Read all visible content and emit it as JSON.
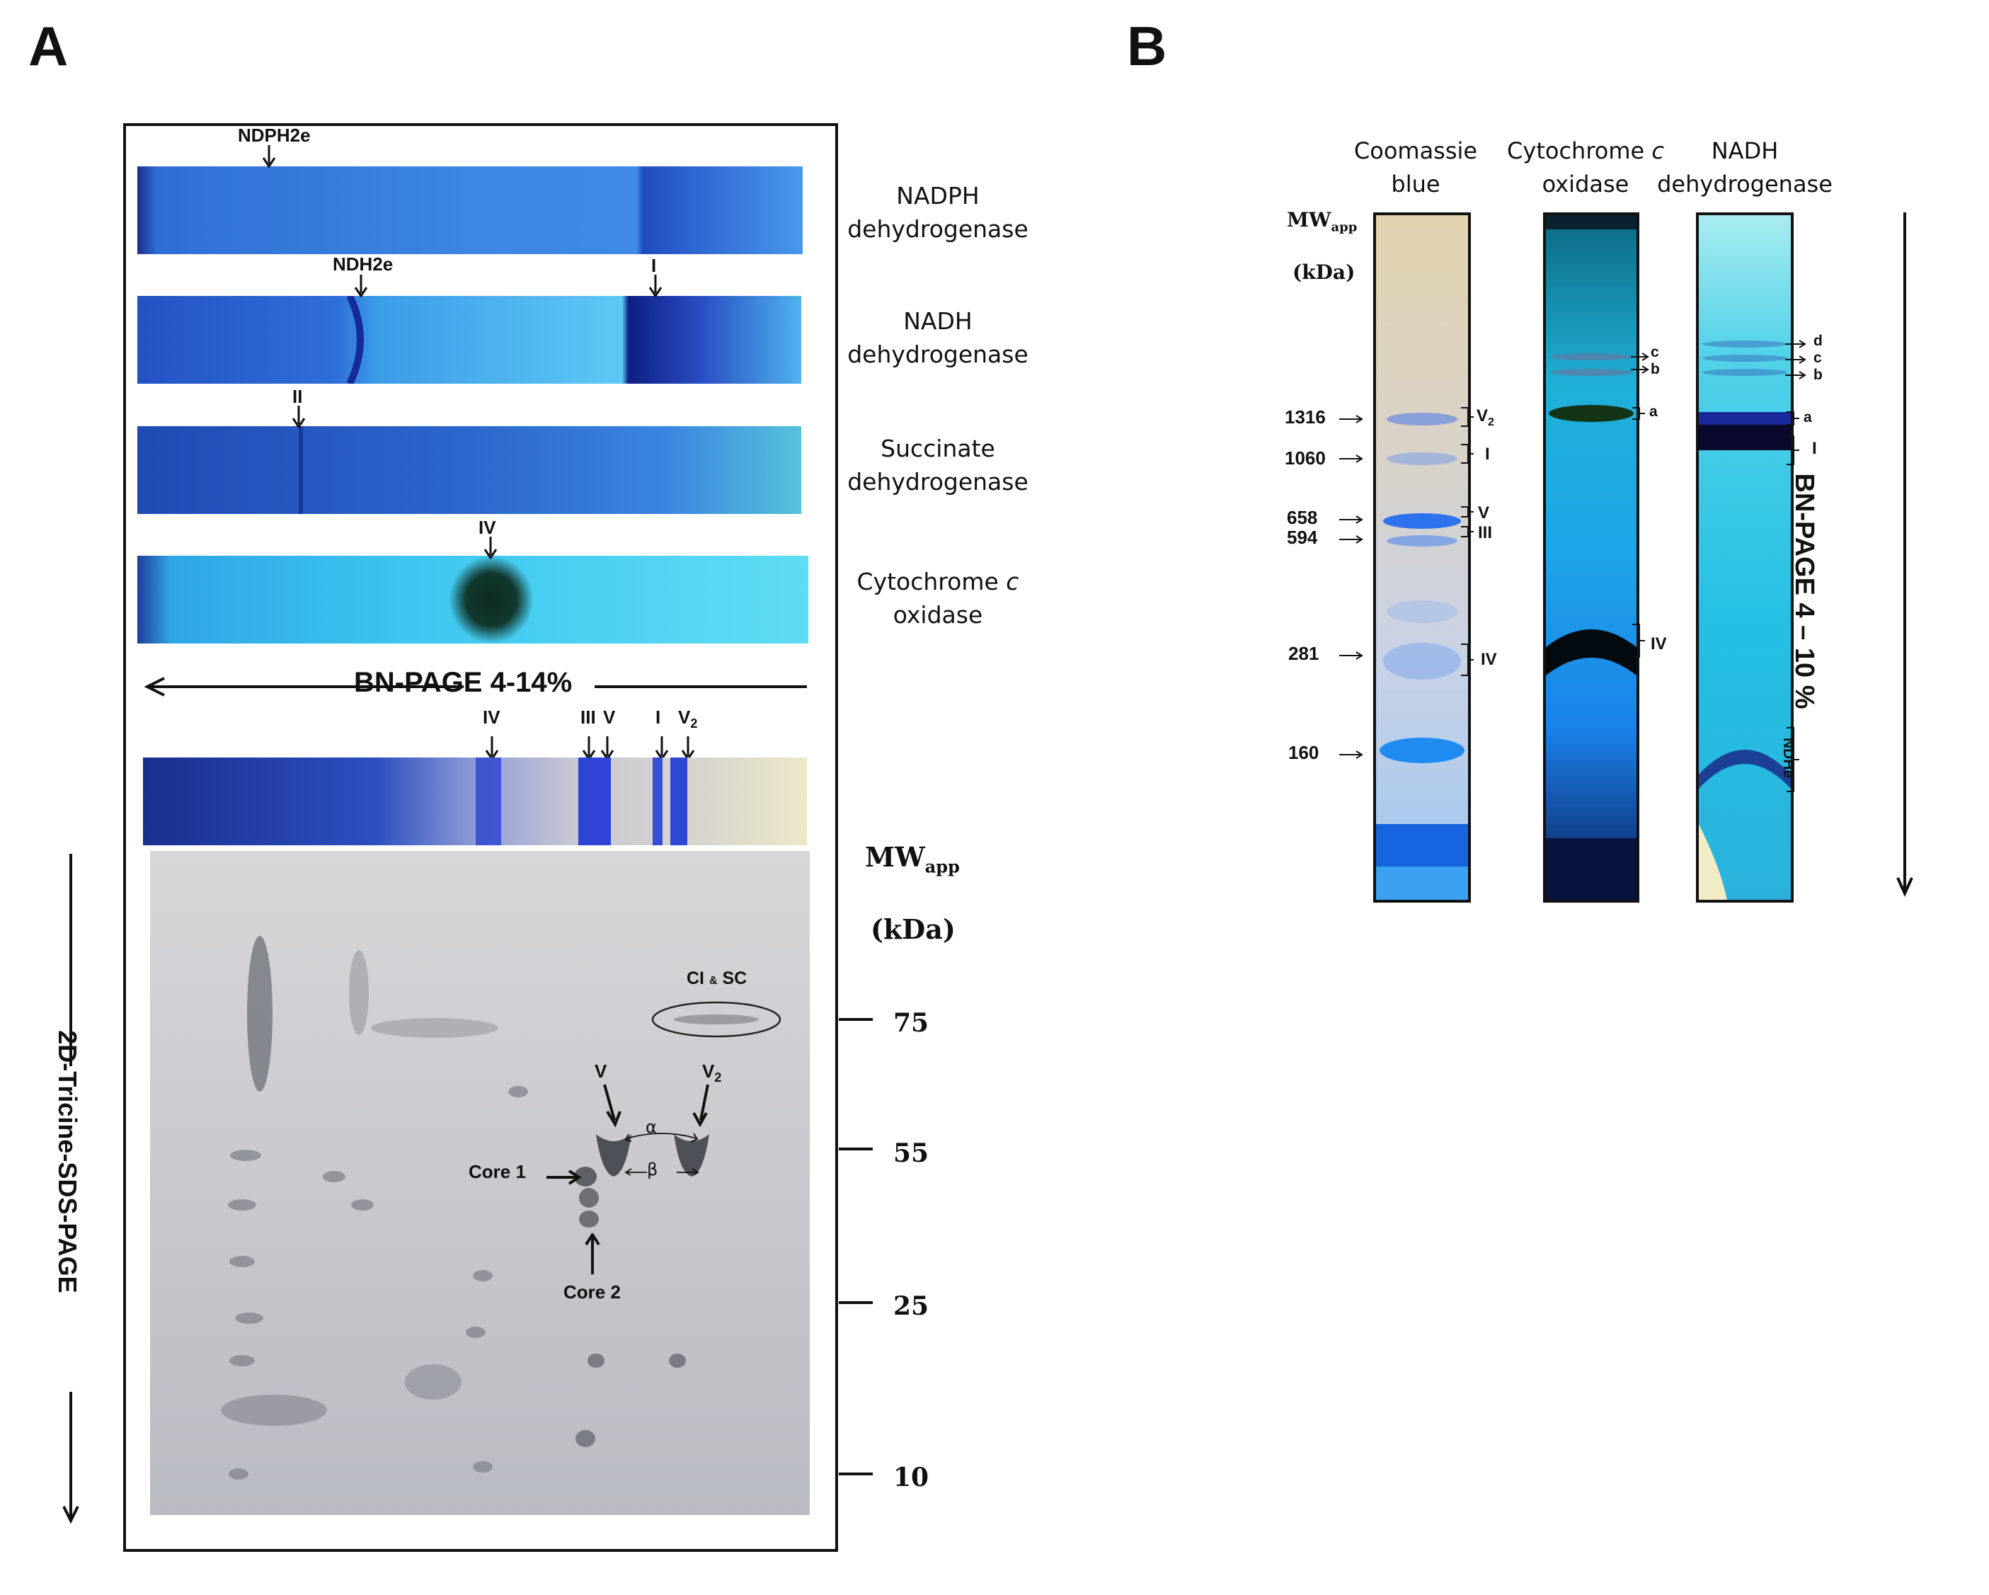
{
  "panelA": {
    "letter": "A",
    "strips": [
      {
        "stain": "NADPH dehydrogenase",
        "line1": "NADPH",
        "line2": "dehydrogenase",
        "marker": "NDPH2e"
      },
      {
        "stain": "NADH dehydrogenase",
        "line1": "NADH",
        "line2": "dehydrogenase",
        "marker1": "NDH2e",
        "marker2": "I"
      },
      {
        "stain": "Succinate dehydrogenase",
        "line1": "Succinate",
        "line2": "dehydrogenase",
        "marker": "II"
      },
      {
        "stain": "Cytochrome c oxidase",
        "line1a": "Cytochrome ",
        "line1b": "c",
        "line2": "oxidase",
        "marker": "IV"
      }
    ],
    "bn_page_label": "BN-PAGE 4-14%",
    "first_dim_lanes": {
      "IV": "IV",
      "III": "III",
      "V": "V",
      "I": "I",
      "V2": "V",
      "V2_sub": "2"
    },
    "sds_label": "2D-Tricine-SDS-PAGE",
    "mw_title": "MW",
    "mw_sub": "app",
    "mw_unit": "(kDa)",
    "mw_ticks": [
      "75",
      "55",
      "25",
      "10"
    ],
    "spot_labels": {
      "cisc_a": "CI",
      "cisc_amp": "&",
      "cisc_b": "SC",
      "v": "V",
      "v2": "V",
      "v2_sub": "2",
      "alpha": "α",
      "beta": "β",
      "core1": "Core 1",
      "core2": "Core 2"
    }
  },
  "panelB": {
    "letter": "B",
    "columns": [
      {
        "line1": "Coomassie",
        "line2": "blue"
      },
      {
        "line1a": "Cytochrome ",
        "line1b": "c",
        "line2": "oxidase"
      },
      {
        "line1": "NADH",
        "line2": "dehydrogenase"
      }
    ],
    "mw_title": "MW",
    "mw_sub": "app",
    "mw_unit": "(kDa)",
    "mw_markers": [
      "1316",
      "1060",
      "658",
      "594",
      "281",
      "160"
    ],
    "coomassie_bands": {
      "v2": "V",
      "v2_sub": "2",
      "i": "I",
      "v": "V",
      "iii": "III",
      "iv": "IV"
    },
    "cox_bands": {
      "c": "c",
      "b": "b",
      "a": "a",
      "iv": "IV"
    },
    "nadh_bands": {
      "d": "d",
      "c": "c",
      "b": "b",
      "a": "a",
      "i": "I",
      "ndhe": "NDHe"
    },
    "bn_label": "BN-PAGE 4 – 10 %"
  }
}
